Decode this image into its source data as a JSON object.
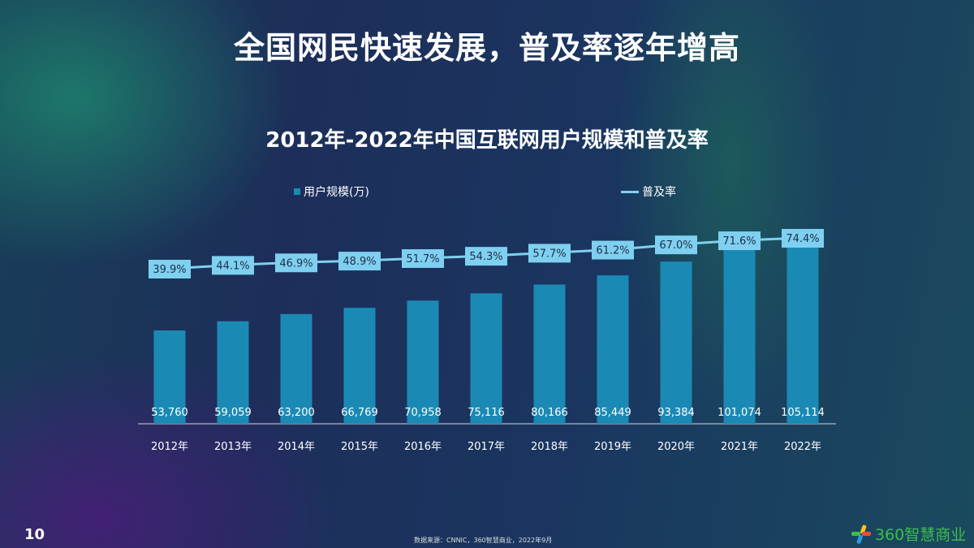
{
  "title": "全国网民快速发展，普及率逐年增高",
  "page_number": "10",
  "source": "数据来源：CNNIC，360智慧商业，2022年9月",
  "logo_text": "360智慧商业",
  "colors": {
    "bar": "#1a8ab5",
    "line": "#7fd0f0",
    "label_box": "#7fd0f0"
  },
  "chart_data": {
    "type": "bar+line",
    "title": "2012年-2022年中国互联网用户规模和普及率",
    "categories": [
      "2012年",
      "2013年",
      "2014年",
      "2015年",
      "2016年",
      "2017年",
      "2018年",
      "2019年",
      "2020年",
      "2021年",
      "2022年"
    ],
    "series": [
      {
        "name": "用户规模(万)",
        "type": "bar",
        "values": [
          53760,
          59059,
          63200,
          66769,
          70958,
          75116,
          80166,
          85449,
          93384,
          101074,
          105114
        ],
        "labels": [
          "53,760",
          "59,059",
          "63,200",
          "66,769",
          "70,958",
          "75,116",
          "80,166",
          "85,449",
          "93,384",
          "101,074",
          "105,114"
        ]
      },
      {
        "name": "普及率",
        "type": "line",
        "values": [
          39.9,
          44.1,
          46.9,
          48.9,
          51.7,
          54.3,
          57.7,
          61.2,
          67.0,
          71.6,
          74.4
        ],
        "labels": [
          "39.9%",
          "44.1%",
          "46.9%",
          "48.9%",
          "51.7%",
          "54.3%",
          "57.7%",
          "61.2%",
          "67.0%",
          "71.6%",
          "74.4%"
        ]
      }
    ],
    "legend_position": "top",
    "grid": false
  }
}
